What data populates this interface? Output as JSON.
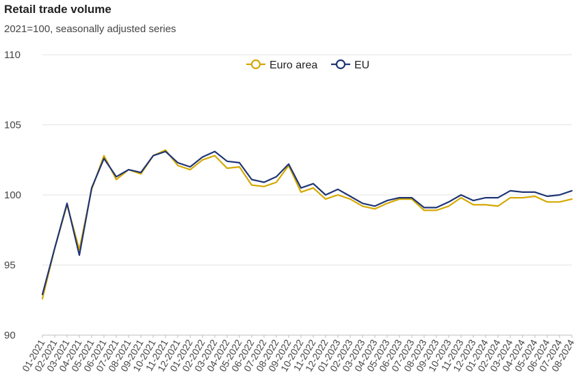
{
  "chart_data": {
    "type": "line",
    "title": "Retail trade volume",
    "subtitle": "2021=100, seasonally adjusted series",
    "xlabel": "",
    "ylabel": "",
    "ylim": [
      90,
      110
    ],
    "yticks": [
      90,
      95,
      100,
      105,
      110
    ],
    "grid": true,
    "legend_position": "top-center",
    "categories": [
      "01-2021",
      "02-2021",
      "03-2021",
      "04-2021",
      "05-2021",
      "06-2021",
      "07-2021",
      "08-2021",
      "09-2021",
      "10-2021",
      "11-2021",
      "12-2021",
      "01-2022",
      "02-2022",
      "03-2022",
      "04-2022",
      "05-2022",
      "06-2022",
      "07-2022",
      "08-2022",
      "09-2022",
      "10-2022",
      "11-2022",
      "12-2022",
      "01-2023",
      "02-2023",
      "03-2023",
      "04-2023",
      "05-2023",
      "06-2023",
      "07-2023",
      "08-2023",
      "09-2023",
      "10-2023",
      "11-2023",
      "12-2023",
      "01-2024",
      "02-2024",
      "03-2024",
      "04-2024",
      "05-2024",
      "06-2024",
      "07-2024",
      "08-2024"
    ],
    "series": [
      {
        "name": "Euro area",
        "color": "#d4a800",
        "values": [
          92.6,
          96.2,
          99.3,
          96.1,
          100.4,
          102.8,
          101.1,
          101.8,
          101.5,
          102.8,
          103.2,
          102.1,
          101.8,
          102.5,
          102.8,
          101.9,
          102.0,
          100.7,
          100.6,
          100.9,
          102.1,
          100.2,
          100.5,
          99.7,
          100.0,
          99.7,
          99.2,
          99.0,
          99.4,
          99.7,
          99.7,
          98.9,
          98.9,
          99.2,
          99.8,
          99.3,
          99.3,
          99.2,
          99.8,
          99.8,
          99.9,
          99.5,
          99.5,
          99.7
        ]
      },
      {
        "name": "EU",
        "color": "#1f3574",
        "values": [
          92.9,
          96.2,
          99.4,
          95.7,
          100.5,
          102.6,
          101.3,
          101.8,
          101.6,
          102.8,
          103.1,
          102.3,
          102.0,
          102.7,
          103.1,
          102.4,
          102.3,
          101.1,
          100.9,
          101.3,
          102.2,
          100.5,
          100.8,
          100.0,
          100.4,
          99.9,
          99.4,
          99.2,
          99.6,
          99.8,
          99.8,
          99.1,
          99.1,
          99.5,
          100.0,
          99.6,
          99.8,
          99.8,
          100.3,
          100.2,
          100.2,
          99.9,
          100.0,
          100.3
        ]
      }
    ]
  }
}
